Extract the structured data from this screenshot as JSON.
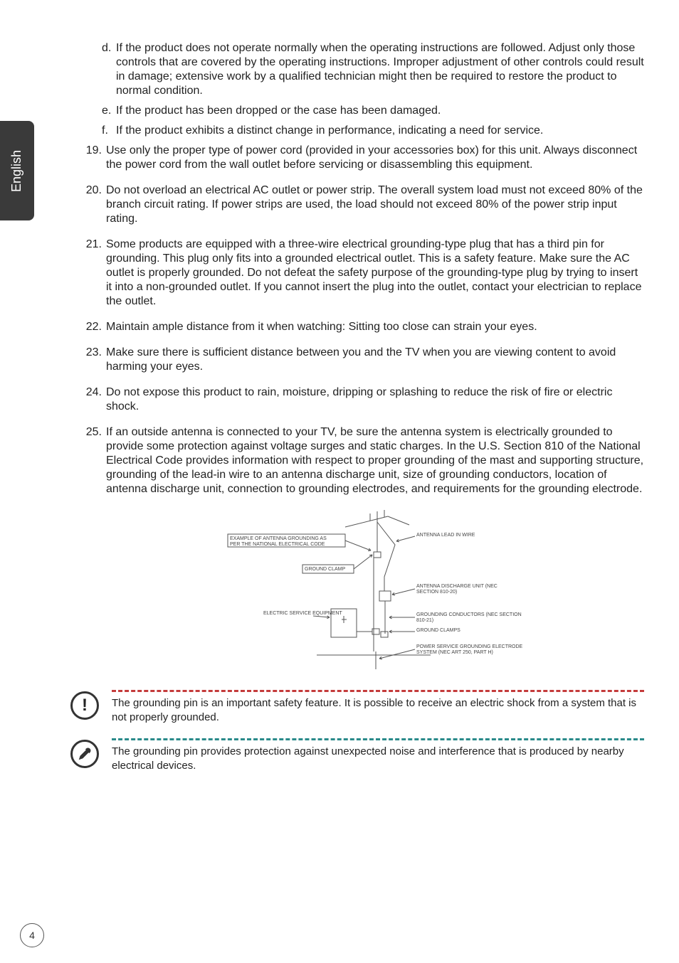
{
  "language_tab": "English",
  "page_number": "4",
  "sub_items_pre": [
    {
      "letter": "d.",
      "text": "If the product does not operate normally when the operating instructions are followed. Adjust only those controls that are covered by the operating instructions. Improper adjustment of other controls could result in damage; extensive work by a qualified technician might then be required to restore the product to normal condition."
    },
    {
      "letter": "e.",
      "text": "If the product has been dropped or the case has been damaged."
    },
    {
      "letter": "f.",
      "text": "If the product exhibits a distinct change in performance, indicating a need for service."
    }
  ],
  "items": [
    {
      "num": "19.",
      "text": "Use only the proper type of power cord (provided in your accessories box) for this unit. Always disconnect the power cord from the wall outlet before servicing or disassembling this equipment."
    },
    {
      "num": "20.",
      "text": "Do not overload an electrical AC outlet or power strip. The overall system load must not exceed 80% of the branch circuit rating. If power strips are used, the load should not exceed 80% of the power strip input rating."
    },
    {
      "num": "21.",
      "text": "Some products are equipped with a three-wire electrical grounding-type plug that has a third pin for grounding. This plug only fits into a grounded electrical outlet. This is a safety feature. Make sure the AC outlet is properly grounded. Do not defeat the safety purpose of the grounding-type plug by trying to insert it into a non-grounded outlet. If you cannot insert the plug into the outlet, contact your electrician to replace the outlet."
    },
    {
      "num": "22.",
      "text": "Maintain ample distance from it when watching: Sitting too close can strain your eyes."
    },
    {
      "num": "23.",
      "text": "Make sure there is sufficient distance between you and the TV when you are viewing content to avoid harming your eyes."
    },
    {
      "num": "24.",
      "text": "Do not expose this product to rain, moisture, dripping or splashing to reduce the risk of fire or electric shock."
    },
    {
      "num": "25.",
      "text": "If an outside antenna is connected to your TV, be sure the antenna system is electrically grounded to provide some protection against voltage surges and static charges. In the U.S. Section 810 of the National Electrical Code provides information with respect to proper grounding of the mast and supporting structure, grounding of the lead-in wire to an antenna discharge unit, size of grounding conductors, location of antenna discharge unit, connection to grounding electrodes, and requirements for the grounding electrode."
    }
  ],
  "diagram": {
    "labels": {
      "title_left": "EXAMPLE OF ANTENNA GROUNDING AS PER THE NATIONAL ELECTRICAL CODE",
      "antenna_lead": "ANTENNA LEAD IN WIRE",
      "ground_clamp_upper": "GROUND CLAMP",
      "discharge_unit": "ANTENNA DISCHARGE UNIT (NEC SECTION 810-20)",
      "electric_service": "ELECTRIC SERVICE EQUIPMENT",
      "grounding_conductors": "GROUNDING CONDUCTORS (NEC SECTION 810-21)",
      "ground_clamps_lower": "GROUND CLAMPS",
      "power_service": "POWER SERVICE GROUNDING ELECTRODE SYSTEM (NEC ART 250, PART H)"
    },
    "label_fontsize": 7,
    "stroke_color": "#555555",
    "line_width": 1
  },
  "callouts": [
    {
      "icon_glyph": "!",
      "dash_color": "#c43b3b",
      "text": "The grounding pin is an important safety feature. It is possible to receive an electric shock from a system that is not properly grounded."
    },
    {
      "icon_glyph": "pin",
      "dash_color": "#2a8a8a",
      "text": "The grounding pin provides protection against unexpected noise and interference that is produced by nearby electrical devices."
    }
  ]
}
